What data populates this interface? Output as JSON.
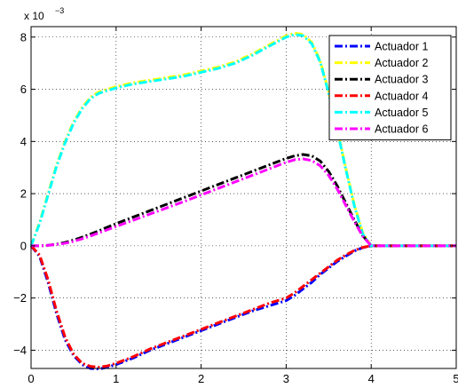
{
  "chart_data": {
    "type": "line",
    "title": "",
    "xlabel": "",
    "ylabel": "",
    "xlim": [
      0,
      5
    ],
    "ylim": [
      -4.7,
      8.4
    ],
    "y_scale_label": {
      "base": "x 10",
      "exponent": "−3"
    },
    "grid": true,
    "legend_position": "top-right",
    "x_ticks": [
      "0",
      "1",
      "2",
      "3",
      "4",
      "5"
    ],
    "y_ticks": [
      "−4",
      "−2",
      "0",
      "2",
      "4",
      "6",
      "8"
    ],
    "x_tick_values": [
      0,
      1,
      2,
      3,
      4,
      5
    ],
    "y_tick_values": [
      -4,
      -2,
      0,
      2,
      4,
      6,
      8
    ],
    "x": [
      0,
      0.1,
      0.2,
      0.3,
      0.4,
      0.5,
      0.6,
      0.7,
      0.8,
      0.9,
      1.0,
      1.2,
      1.4,
      1.6,
      1.8,
      2.0,
      2.2,
      2.4,
      2.6,
      2.8,
      3.0,
      3.1,
      3.2,
      3.3,
      3.4,
      3.5,
      3.6,
      3.7,
      3.8,
      3.9,
      4.0,
      4.2,
      4.5,
      5.0
    ],
    "series": [
      {
        "name": "Actuador 1",
        "color": "#0000ff",
        "values": [
          0,
          -0.4,
          -1.4,
          -2.6,
          -3.6,
          -4.2,
          -4.55,
          -4.7,
          -4.72,
          -4.65,
          -4.55,
          -4.3,
          -4.0,
          -3.75,
          -3.5,
          -3.25,
          -3.0,
          -2.75,
          -2.5,
          -2.3,
          -2.1,
          -1.9,
          -1.65,
          -1.4,
          -1.1,
          -0.85,
          -0.6,
          -0.4,
          -0.2,
          -0.07,
          0,
          0,
          0,
          0
        ]
      },
      {
        "name": "Actuador 2",
        "color": "#ffff00",
        "values": [
          0,
          0.9,
          2.0,
          3.1,
          4.0,
          4.75,
          5.3,
          5.7,
          5.9,
          6.0,
          6.1,
          6.25,
          6.35,
          6.45,
          6.55,
          6.7,
          6.85,
          7.05,
          7.35,
          7.7,
          8.05,
          8.15,
          8.1,
          7.8,
          7.1,
          5.9,
          4.5,
          3.0,
          1.6,
          0.5,
          0,
          0,
          0,
          0
        ]
      },
      {
        "name": "Actuador 3",
        "color": "#000000",
        "values": [
          0,
          0,
          0.02,
          0.06,
          0.13,
          0.22,
          0.33,
          0.45,
          0.58,
          0.72,
          0.85,
          1.1,
          1.35,
          1.6,
          1.85,
          2.1,
          2.35,
          2.6,
          2.85,
          3.1,
          3.35,
          3.45,
          3.5,
          3.45,
          3.25,
          2.85,
          2.3,
          1.65,
          1.0,
          0.4,
          0,
          0,
          0,
          0
        ]
      },
      {
        "name": "Actuador 4",
        "color": "#ff0000",
        "values": [
          0,
          -0.35,
          -1.3,
          -2.5,
          -3.5,
          -4.15,
          -4.5,
          -4.62,
          -4.65,
          -4.6,
          -4.5,
          -4.25,
          -3.95,
          -3.7,
          -3.45,
          -3.2,
          -2.95,
          -2.7,
          -2.45,
          -2.2,
          -2.0,
          -1.8,
          -1.55,
          -1.3,
          -1.05,
          -0.8,
          -0.55,
          -0.35,
          -0.18,
          -0.06,
          0,
          0,
          0,
          0
        ]
      },
      {
        "name": "Actuador 5",
        "color": "#00ffff",
        "values": [
          0,
          0.85,
          1.95,
          3.05,
          3.95,
          4.7,
          5.25,
          5.65,
          5.85,
          5.95,
          6.05,
          6.2,
          6.3,
          6.4,
          6.5,
          6.65,
          6.8,
          7.0,
          7.3,
          7.65,
          8.0,
          8.1,
          8.05,
          7.75,
          7.05,
          5.85,
          4.45,
          2.95,
          1.55,
          0.45,
          0,
          0,
          0,
          0
        ]
      },
      {
        "name": "Actuador 6",
        "color": "#ff00ff",
        "values": [
          0,
          0,
          0.02,
          0.05,
          0.1,
          0.17,
          0.27,
          0.38,
          0.5,
          0.62,
          0.74,
          0.98,
          1.22,
          1.46,
          1.7,
          1.95,
          2.2,
          2.45,
          2.7,
          2.95,
          3.2,
          3.3,
          3.33,
          3.27,
          3.07,
          2.7,
          2.18,
          1.56,
          0.94,
          0.37,
          0,
          0,
          0,
          0
        ]
      }
    ]
  }
}
